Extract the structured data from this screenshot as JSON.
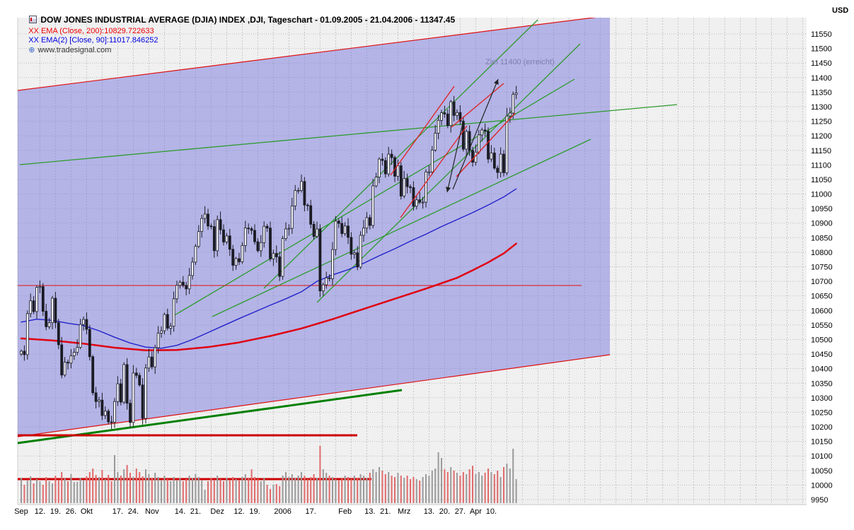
{
  "header": {
    "title": "DOW JONES INDUSTRIAL AVERAGE (DJIA) INDEX ,DJI, Tageschart - 01.09.2005 - 21.04.2006 - 11347.45",
    "ema200_label": "XX EMA (Close, 200):10829.722633",
    "ema90_label": "XX EMA(2) [Close, 90]:11017.846252",
    "copyright_text": "www.tradesignal.com",
    "currency": "USD"
  },
  "colors": {
    "plot_bg": "#f0f0f1",
    "grid": "#bdbdbd",
    "channel_fill": "rgba(125,125,220,0.52)",
    "channel_border": "#e01010",
    "candle_down": "#1b1b24",
    "candle_up_fill": "#f8f8ff",
    "ema200": "#e00010",
    "ema90": "#2222cc",
    "trend_green": "#2e9b2e",
    "trend_green_thick": "#008000",
    "red_line": "#cc0000",
    "vol_up": "#9a9a9a",
    "vol_down": "#e06a6a",
    "arrow": "#222222",
    "axis_text": "#000000"
  },
  "chart_data": {
    "type": "candlestick",
    "title": "DOW JONES INDUSTRIAL AVERAGE (DJIA) INDEX ,DJI, Tageschart",
    "period": "01.09.2005 - 21.04.2006",
    "last_price": 11347.45,
    "y_axis": {
      "unit": "USD",
      "min": 9950,
      "max": 11550,
      "step": 50
    },
    "x_axis": {
      "ticks": [
        {
          "label": "Sep",
          "i": 0
        },
        {
          "label": "12.",
          "i": 6
        },
        {
          "label": "19.",
          "i": 11
        },
        {
          "label": "26.",
          "i": 16
        },
        {
          "label": "Okt",
          "i": 21
        },
        {
          "label": "17.",
          "i": 31
        },
        {
          "label": "24.",
          "i": 36
        },
        {
          "label": "Nov",
          "i": 42
        },
        {
          "label": "14.",
          "i": 51
        },
        {
          "label": "21.",
          "i": 56
        },
        {
          "label": "Dez",
          "i": 63
        },
        {
          "label": "12.",
          "i": 70
        },
        {
          "label": "19.",
          "i": 75
        },
        {
          "label": "2006",
          "i": 84
        },
        {
          "label": "17.",
          "i": 93
        },
        {
          "label": "Feb",
          "i": 104
        },
        {
          "label": "13.",
          "i": 112
        },
        {
          "label": "21.",
          "i": 117
        },
        {
          "label": "Mrz",
          "i": 123
        },
        {
          "label": "13.",
          "i": 131
        },
        {
          "label": "20.",
          "i": 136
        },
        {
          "label": "27.",
          "i": 141
        },
        {
          "label": "Apr",
          "i": 146
        },
        {
          "label": "10.",
          "i": 151
        }
      ]
    },
    "series": {
      "name": ".DJI daily close",
      "first_open": 10450,
      "closes": [
        10460,
        10448,
        10589,
        10633,
        10596,
        10679,
        10682,
        10597,
        10544,
        10558,
        10642,
        10558,
        10482,
        10378,
        10422,
        10419,
        10444,
        10456,
        10473,
        10552,
        10569,
        10535,
        10441,
        10317,
        10287,
        10292,
        10239,
        10254,
        10217,
        10216,
        10287,
        10348,
        10285,
        10414,
        10281,
        10215,
        10385,
        10377,
        10344,
        10229,
        10402,
        10440,
        10406,
        10472,
        10522,
        10530,
        10586,
        10539,
        10546,
        10640,
        10686,
        10697,
        10686,
        10674,
        10720,
        10766,
        10820,
        10871,
        10916,
        10931,
        10890,
        10888,
        10805,
        10912,
        10877,
        10835,
        10856,
        10810,
        10755,
        10778,
        10767,
        10823,
        10883,
        10881,
        10875,
        10836,
        10805,
        10833,
        10889,
        10883,
        10777,
        10796,
        10784,
        10717,
        10847,
        10880,
        10882,
        10959,
        11012,
        11012,
        11043,
        10962,
        10960,
        10896,
        10854,
        10880,
        10667,
        10688,
        10712,
        10709,
        10809,
        10907,
        10899,
        10864,
        10890,
        10851,
        10793,
        10798,
        10749,
        10858,
        10883,
        10919,
        10892,
        11028,
        11058,
        11120,
        11115,
        11069,
        11137,
        11125,
        11061,
        11097,
        10993,
        11053,
        11025,
        11022,
        10958,
        10980,
        10972,
        10972,
        11076,
        11076,
        11151,
        11209,
        11253,
        11279,
        11275,
        11235,
        11317,
        11270,
        11280,
        11250,
        11154,
        11215,
        11150,
        11109,
        11144,
        11203,
        11220,
        11216,
        11120,
        11141,
        11089,
        11074,
        11137,
        11073,
        11268,
        11278,
        11342,
        11347.45
      ],
      "volume_rel": [
        0.42,
        0.3,
        0.38,
        0.45,
        0.33,
        0.4,
        0.36,
        0.31,
        0.44,
        0.37,
        0.33,
        0.46,
        0.39,
        0.52,
        0.41,
        0.36,
        0.48,
        0.35,
        0.35,
        0.42,
        0.38,
        0.45,
        0.52,
        0.58,
        0.47,
        0.43,
        0.55,
        0.4,
        0.47,
        0.36,
        0.8,
        0.52,
        0.46,
        0.57,
        0.64,
        0.5,
        0.44,
        0.58,
        0.52,
        0.45,
        0.56,
        0.48,
        0.42,
        0.5,
        0.44,
        0.38,
        0.46,
        0.4,
        0.36,
        0.44,
        0.38,
        0.42,
        0.36,
        0.4,
        0.46,
        0.42,
        0.48,
        0.44,
        0.38,
        0.22,
        0.36,
        0.42,
        0.38,
        0.46,
        0.4,
        0.36,
        0.42,
        0.38,
        0.44,
        0.4,
        0.38,
        0.44,
        0.48,
        0.42,
        0.56,
        0.44,
        0.4,
        0.36,
        0.42,
        0.3,
        0.24,
        0.3,
        0.32,
        0.28,
        0.46,
        0.52,
        0.44,
        0.48,
        0.42,
        0.46,
        0.52,
        0.46,
        0.4,
        0.44,
        0.48,
        0.42,
        0.95,
        0.56,
        0.5,
        0.46,
        0.44,
        0.4,
        0.38,
        0.42,
        0.46,
        0.44,
        0.4,
        0.46,
        0.42,
        0.48,
        0.46,
        0.42,
        0.5,
        0.56,
        0.52,
        0.6,
        0.54,
        0.48,
        0.52,
        0.46,
        0.44,
        0.5,
        0.46,
        0.42,
        0.46,
        0.4,
        0.44,
        0.4,
        0.38,
        0.44,
        0.48,
        0.46,
        0.54,
        0.58,
        0.85,
        0.75,
        0.56,
        0.52,
        0.6,
        0.54,
        0.5,
        0.46,
        0.52,
        0.48,
        0.56,
        0.62,
        0.48,
        0.52,
        0.46,
        0.5,
        0.58,
        0.52,
        0.48,
        0.54,
        0.44,
        0.6,
        0.66,
        0.58,
        0.9,
        0.4
      ]
    },
    "overlays": [
      {
        "name": "EMA (Close, 200)",
        "value": 10829.722633,
        "color": "#e00010",
        "width": 2.5,
        "points": [
          [
            0,
            10504
          ],
          [
            10,
            10497
          ],
          [
            20,
            10486
          ],
          [
            30,
            10472
          ],
          [
            40,
            10463
          ],
          [
            50,
            10464
          ],
          [
            60,
            10474
          ],
          [
            70,
            10490
          ],
          [
            80,
            10512
          ],
          [
            90,
            10538
          ],
          [
            100,
            10570
          ],
          [
            110,
            10605
          ],
          [
            120,
            10640
          ],
          [
            130,
            10675
          ],
          [
            140,
            10712
          ],
          [
            145,
            10738
          ],
          [
            150,
            10765
          ],
          [
            155,
            10796
          ],
          [
            159,
            10829.7
          ]
        ]
      },
      {
        "name": "EMA(2) [Close, 90]",
        "value": 11017.846252,
        "color": "#2222cc",
        "width": 1.4,
        "points": [
          [
            0,
            10560
          ],
          [
            5,
            10570
          ],
          [
            10,
            10566
          ],
          [
            15,
            10556
          ],
          [
            20,
            10548
          ],
          [
            25,
            10530
          ],
          [
            30,
            10508
          ],
          [
            35,
            10488
          ],
          [
            40,
            10474
          ],
          [
            45,
            10470
          ],
          [
            50,
            10480
          ],
          [
            55,
            10500
          ],
          [
            60,
            10524
          ],
          [
            65,
            10548
          ],
          [
            70,
            10572
          ],
          [
            75,
            10595
          ],
          [
            80,
            10618
          ],
          [
            85,
            10640
          ],
          [
            90,
            10664
          ],
          [
            95,
            10700
          ],
          [
            100,
            10722
          ],
          [
            105,
            10740
          ],
          [
            110,
            10762
          ],
          [
            115,
            10788
          ],
          [
            120,
            10812
          ],
          [
            125,
            10838
          ],
          [
            130,
            10862
          ],
          [
            135,
            10888
          ],
          [
            140,
            10912
          ],
          [
            145,
            10936
          ],
          [
            150,
            10962
          ],
          [
            155,
            10990
          ],
          [
            159,
            11017.8
          ]
        ]
      }
    ],
    "annotations": {
      "target_text": "Ziel 11400 (erreicht)"
    },
    "drawings": {
      "channel": {
        "points": [
          [
            25,
            128
          ],
          [
            862,
            22
          ],
          [
            862,
            502
          ],
          [
            25,
            618
          ]
        ]
      },
      "hlines": [
        {
          "y": 404,
          "x1": 25,
          "x2": 822,
          "w": 1
        },
        {
          "y": 616,
          "x1": 25,
          "x2": 505,
          "w": 3
        },
        {
          "y": 678,
          "x1": 25,
          "x2": 525,
          "w": 3
        }
      ],
      "green_lines": [
        {
          "p": [
            [
              28,
              233
            ],
            [
              957,
              148
            ]
          ],
          "w": 1.3
        },
        {
          "p": [
            [
              245,
              447
            ],
            [
              812,
              112
            ]
          ],
          "w": 1.3
        },
        {
          "p": [
            [
              300,
              448
            ],
            [
              835,
              197
            ]
          ],
          "w": 1.3
        },
        {
          "p": [
            [
              373,
              408
            ],
            [
              760,
              28
            ]
          ],
          "w": 1.3
        },
        {
          "p": [
            [
              448,
              428
            ],
            [
              820,
              62
            ]
          ],
          "w": 1.3
        },
        {
          "p": [
            [
              25,
              627
            ],
            [
              568,
              552
            ]
          ],
          "w": 3,
          "thick": true
        }
      ],
      "red_segments": [
        [
          [
            552,
            248
          ],
          [
            642,
            122
          ]
        ],
        [
          [
            566,
            308
          ],
          [
            660,
            178
          ]
        ],
        [
          [
            638,
            180
          ],
          [
            712,
            118
          ]
        ],
        [
          [
            645,
            250
          ],
          [
            728,
            160
          ]
        ]
      ],
      "arrows": [
        {
          "p": [
            [
              655,
              170
            ],
            [
              632,
              272
            ]
          ]
        },
        {
          "p": [
            [
              640,
              268
            ],
            [
              704,
              112
            ]
          ]
        }
      ]
    }
  }
}
